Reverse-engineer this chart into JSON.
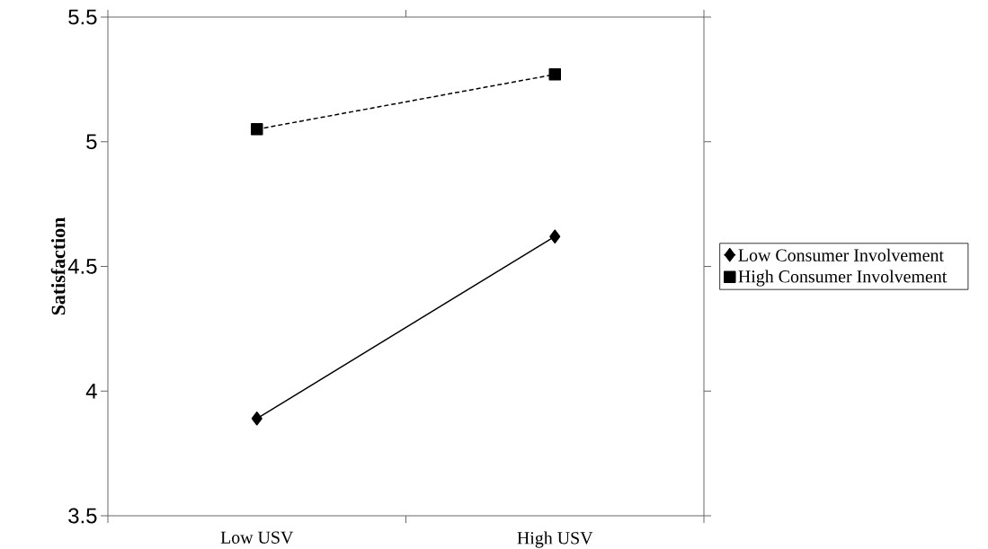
{
  "chart_data": {
    "type": "line",
    "ylabel": "Satisfaction",
    "categories": [
      "Low USV",
      "High USV"
    ],
    "series": [
      {
        "name": "Low Consumer Involvement",
        "color": "#000000",
        "values": [
          3.89,
          4.62
        ],
        "marker": "diamond",
        "line_style": "solid"
      },
      {
        "name": "High Consumer Involvement",
        "color": "#000000",
        "values": [
          5.05,
          5.27
        ],
        "marker": "square",
        "line_style": "dashed"
      }
    ],
    "ylim": [
      3.5,
      5.5
    ],
    "yticks": [
      3.5,
      4,
      4.5,
      5,
      5.5
    ],
    "legend": "right",
    "grid": false
  }
}
